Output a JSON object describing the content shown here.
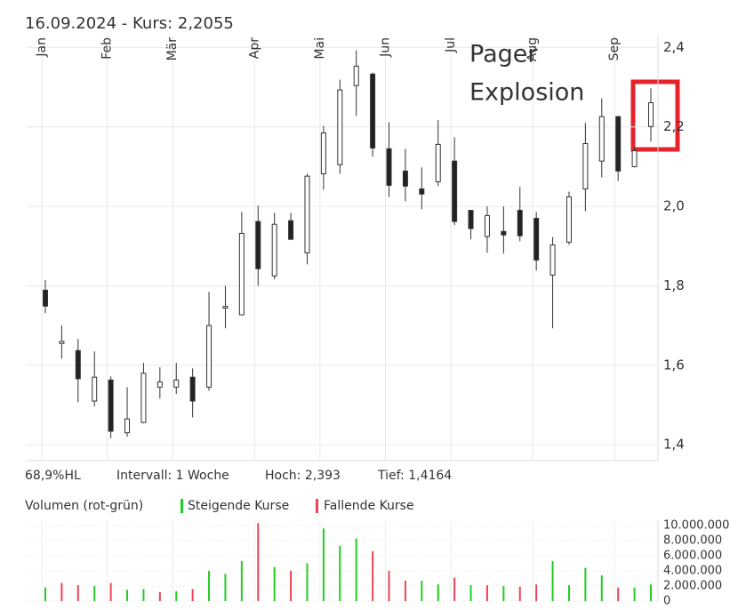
{
  "chart_data": [
    {
      "type": "candlestick",
      "title": "16.09.2024  -  Kurs: 2,2055",
      "categories": [
        "Jan",
        null,
        null,
        null,
        "Feb",
        null,
        null,
        null,
        "Mär",
        null,
        null,
        null,
        null,
        "Apr",
        null,
        null,
        null,
        "Mai",
        null,
        null,
        null,
        "Jun",
        null,
        null,
        null,
        "Jul",
        null,
        null,
        null,
        null,
        "Aug",
        null,
        null,
        null,
        null,
        "Sep",
        null,
        null
      ],
      "open": [
        1.789,
        1.655,
        1.637,
        1.51,
        1.563,
        1.43,
        1.456,
        1.545,
        1.545,
        1.57,
        1.545,
        1.744,
        1.727,
        1.962,
        1.825,
        1.964,
        1.883,
        2.082,
        2.105,
        2.304,
        2.333,
        2.145,
        2.089,
        2.044,
        2.062,
        2.114,
        1.99,
        1.924,
        1.937,
        1.99,
        1.97,
        1.827,
        1.91,
        2.044,
        2.114,
        2.226,
        2.1,
        2.201
      ],
      "high": [
        1.814,
        1.7,
        1.666,
        1.635,
        1.572,
        1.545,
        1.606,
        1.595,
        1.606,
        1.592,
        1.785,
        1.8,
        1.986,
        2.002,
        1.984,
        1.984,
        2.082,
        2.203,
        2.319,
        2.393,
        2.337,
        2.212,
        2.145,
        2.098,
        2.217,
        2.174,
        1.99,
        2.0,
        2.0,
        2.049,
        1.986,
        1.923,
        2.037,
        2.21,
        2.272,
        2.228,
        2.149,
        2.297
      ],
      "low": [
        1.731,
        1.617,
        1.507,
        1.496,
        1.4164,
        1.42,
        1.454,
        1.516,
        1.528,
        1.469,
        1.536,
        1.693,
        1.727,
        1.8,
        1.816,
        1.917,
        1.854,
        2.042,
        2.082,
        2.228,
        2.125,
        2.024,
        2.013,
        1.993,
        2.051,
        1.953,
        1.917,
        1.883,
        1.881,
        1.912,
        1.838,
        1.693,
        1.903,
        1.988,
        2.073,
        2.064,
        2.098,
        2.163
      ],
      "close": [
        1.749,
        1.66,
        1.566,
        1.57,
        1.434,
        1.465,
        1.58,
        1.558,
        1.563,
        1.51,
        1.7,
        1.748,
        1.932,
        1.843,
        1.955,
        1.917,
        2.076,
        2.185,
        2.293,
        2.353,
        2.147,
        2.053,
        2.051,
        2.031,
        2.156,
        1.962,
        1.944,
        1.977,
        1.928,
        1.926,
        1.865,
        1.903,
        2.024,
        2.158,
        2.226,
        2.089,
        2.14,
        2.261
      ],
      "rising_color": "#ffffff",
      "falling_color": "#222222",
      "ylim": [
        1.36,
        2.43
      ],
      "yticks": [
        {
          "value": 1.4,
          "label": "1,4"
        },
        {
          "value": 1.6,
          "label": "1,6"
        },
        {
          "value": 1.8,
          "label": "1,8"
        },
        {
          "value": 2.0,
          "label": "2,0"
        },
        {
          "value": 2.2,
          "label": "2,2"
        },
        {
          "value": 2.4,
          "label": "2,4"
        }
      ],
      "grid": true,
      "annotation": [
        "Pager",
        "Explosion"
      ],
      "stats": [
        "68,9%HL",
        "Intervall: 1 Woche",
        "Hoch:  2,393",
        "Tief: 1,4164"
      ]
    },
    {
      "type": "bar",
      "title": "Volumen (rot-grün)",
      "series": [
        {
          "name": "Steigende Kurse",
          "color": "#22cc22",
          "values": [
            1800000,
            null,
            null,
            2000000,
            null,
            1500000,
            1600000,
            null,
            1300000,
            null,
            4000000,
            3600000,
            5300000,
            null,
            4500000,
            null,
            5000000,
            9600000,
            7300000,
            8300000,
            null,
            null,
            null,
            2700000,
            2200000,
            null,
            2100000,
            null,
            2000000,
            null,
            null,
            5300000,
            2100000,
            4400000,
            3400000,
            null,
            1800000,
            2200000
          ]
        },
        {
          "name": "Fallende Kurse",
          "color": "#ee4455",
          "values": [
            null,
            2400000,
            2100000,
            null,
            2400000,
            null,
            null,
            1200000,
            null,
            1600000,
            null,
            null,
            null,
            10300000,
            null,
            4000000,
            null,
            null,
            null,
            null,
            6600000,
            4000000,
            2700000,
            null,
            null,
            3100000,
            null,
            2100000,
            null,
            1900000,
            2200000,
            null,
            null,
            null,
            null,
            1800000,
            null,
            null
          ]
        }
      ],
      "ylim": [
        0,
        10700000
      ],
      "yticks": [
        0,
        {
          "value": 2000000,
          "label": "2.000.000"
        },
        {
          "value": 4000000,
          "label": "4.000.000"
        },
        {
          "value": 6000000,
          "label": "6.000.000"
        },
        {
          "value": 8000000,
          "label": "8.000.000"
        },
        {
          "value": 10000000,
          "label": "10.000.000"
        }
      ],
      "grid": true
    }
  ]
}
